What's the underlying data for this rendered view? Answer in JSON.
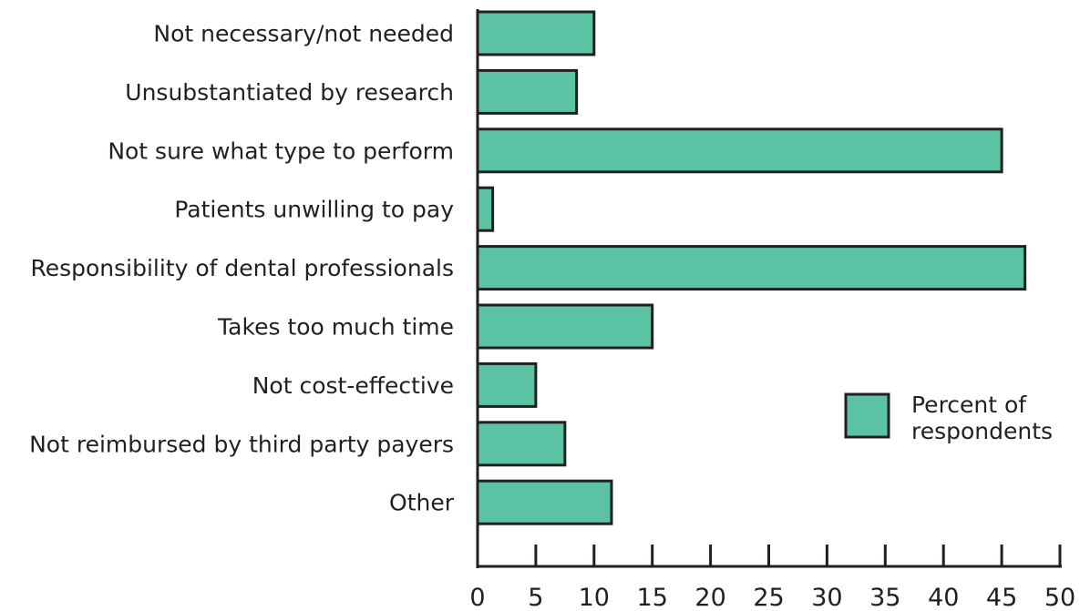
{
  "chart_data": {
    "type": "bar",
    "orientation": "horizontal",
    "categories": [
      "Not necessary/not needed",
      "Unsubstantiated by research",
      "Not sure what type to perform",
      "Patients unwilling to pay",
      "Responsibility of dental professionals",
      "Takes too much time",
      "Not cost-effective",
      "Not reimbursed by third party payers",
      "Other"
    ],
    "series": [
      {
        "name": "Percent of respondents",
        "values": [
          10,
          8.5,
          45,
          1.3,
          47,
          15,
          5,
          7.5,
          11.5
        ]
      }
    ],
    "xlim": [
      0,
      50
    ],
    "xticks": [
      0,
      5,
      10,
      15,
      20,
      25,
      30,
      35,
      40,
      45,
      50
    ],
    "legend": {
      "placement": "right",
      "line1": "Percent of",
      "line2": "respondents"
    },
    "colors": {
      "bar_fill": "#5bc2a3",
      "outline": "#231f20"
    },
    "grid": false
  }
}
